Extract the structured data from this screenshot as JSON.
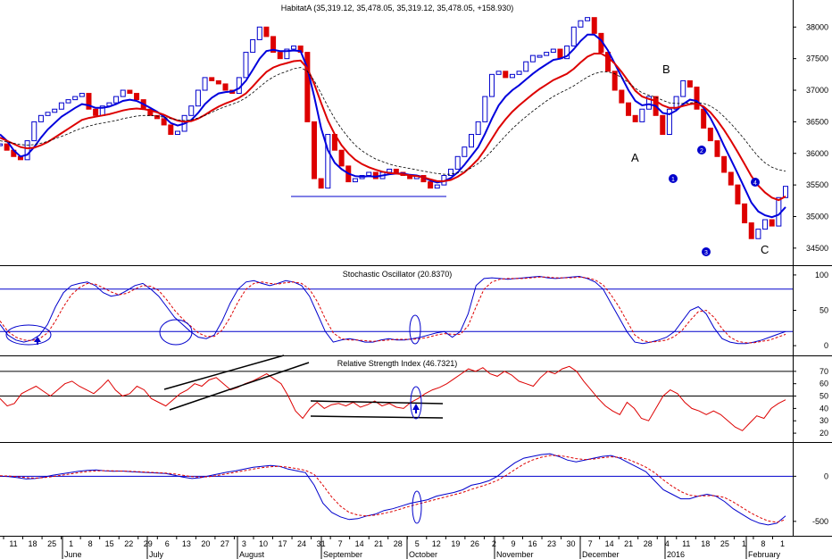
{
  "chart_data": [
    {
      "type": "candlestick",
      "title": "HabitatA (35,319.12, 35,478.05, 35,319.12, 35,478.05, +158.930)",
      "y_ticks": [
        "38000",
        "37500",
        "37000",
        "36500",
        "36000",
        "35500",
        "35000",
        "34500"
      ],
      "ylim": [
        34300,
        38400
      ],
      "annotations": [
        "A",
        "B",
        "C",
        "1",
        "2",
        "3",
        "4"
      ],
      "series": [
        {
          "name": "Price",
          "color": "#0000cc",
          "values": [
            36150,
            36050,
            35950,
            35900,
            36200,
            36500,
            36600,
            36650,
            36700,
            36800,
            36850,
            36900,
            36950,
            36700,
            36600,
            36750,
            36800,
            36900,
            37000,
            36950,
            36850,
            36700,
            36600,
            36550,
            36450,
            36300,
            36350,
            36600,
            36750,
            37000,
            37200,
            37150,
            37100,
            37000,
            36950,
            37200,
            37600,
            37800,
            38000,
            37850,
            37600,
            37500,
            37650,
            37700,
            37600,
            36500,
            35600,
            35450,
            36300,
            36050,
            35800,
            35550,
            35600,
            35650,
            35700,
            35600,
            35700,
            35750,
            35700,
            35650,
            35600,
            35650,
            35550,
            35450,
            35500,
            35650,
            35750,
            35950,
            36100,
            36300,
            36500,
            36900,
            37250,
            37300,
            37200,
            37250,
            37300,
            37450,
            37550,
            37550,
            37600,
            37650,
            37500,
            37700,
            38000,
            38100,
            38150,
            37900,
            37600,
            37300,
            37000,
            36800,
            36600,
            36500,
            36700,
            36900,
            36600,
            36300,
            36700,
            36900,
            37150,
            37050,
            36700,
            36400,
            36200,
            35950,
            35700,
            35500,
            35200,
            34900,
            34650,
            34800,
            34950,
            34850,
            35300,
            35478
          ]
        },
        {
          "name": "MA fast",
          "color": "#0000dd",
          "values": [
            36300,
            36200,
            36050,
            35950,
            35980,
            36100,
            36250,
            36380,
            36480,
            36580,
            36650,
            36720,
            36780,
            36760,
            36720,
            36720,
            36740,
            36780,
            36830,
            36850,
            36830,
            36780,
            36720,
            36660,
            36580,
            36480,
            36440,
            36470,
            36530,
            36640,
            36780,
            36880,
            36950,
            36970,
            36980,
            37030,
            37150,
            37320,
            37500,
            37620,
            37640,
            37620,
            37620,
            37630,
            37620,
            37350,
            36900,
            36400,
            36050,
            35850,
            35750,
            35680,
            35640,
            35630,
            35640,
            35630,
            35650,
            35670,
            35680,
            35680,
            35660,
            35650,
            35620,
            35570,
            35540,
            35560,
            35610,
            35700,
            35820,
            35960,
            36100,
            36310,
            36550,
            36760,
            36900,
            37000,
            37080,
            37170,
            37260,
            37340,
            37410,
            37480,
            37500,
            37540,
            37650,
            37780,
            37880,
            37880,
            37790,
            37630,
            37420,
            37210,
            37000,
            36830,
            36760,
            36780,
            36750,
            36640,
            36620,
            36680,
            36780,
            36850,
            36830,
            36720,
            36560,
            36350,
            36120,
            35900,
            35680,
            35450,
            35220,
            35080,
            35020,
            34990,
            35030,
            35150
          ]
        },
        {
          "name": "MA medium",
          "color": "#dd0000",
          "values": [
            36250,
            36200,
            36150,
            36100,
            36080,
            36090,
            36130,
            36180,
            36250,
            36320,
            36390,
            36460,
            36530,
            36560,
            36580,
            36600,
            36620,
            36650,
            36680,
            36700,
            36710,
            36700,
            36680,
            36650,
            36610,
            36560,
            36520,
            36500,
            36510,
            36550,
            36610,
            36680,
            36740,
            36790,
            36830,
            36880,
            36950,
            37060,
            37180,
            37290,
            37360,
            37400,
            37430,
            37460,
            37470,
            37350,
            37100,
            36800,
            36520,
            36300,
            36130,
            36000,
            35900,
            35830,
            35780,
            35740,
            35710,
            35690,
            35680,
            35670,
            35650,
            35640,
            35620,
            35590,
            35560,
            35560,
            35580,
            35630,
            35700,
            35800,
            35910,
            36060,
            36230,
            36400,
            36540,
            36660,
            36760,
            36850,
            36940,
            37020,
            37090,
            37160,
            37210,
            37260,
            37340,
            37440,
            37530,
            37580,
            37580,
            37520,
            37420,
            37290,
            37140,
            36990,
            36900,
            36860,
            36830,
            36760,
            36720,
            36720,
            36750,
            36780,
            36790,
            36740,
            36650,
            36520,
            36370,
            36200,
            36020,
            35830,
            35640,
            35490,
            35380,
            35300,
            35260,
            35320
          ]
        },
        {
          "name": "MA slow",
          "color": "#000000",
          "values": [
            36200,
            36180,
            36160,
            36140,
            36130,
            36140,
            36160,
            36190,
            36230,
            36270,
            36310,
            36360,
            36400,
            36430,
            36460,
            36480,
            36500,
            36520,
            36550,
            36570,
            36590,
            36600,
            36600,
            36590,
            36570,
            36550,
            36530,
            36520,
            36530,
            36560,
            36600,
            36650,
            36700,
            36740,
            36780,
            36820,
            36880,
            36960,
            37050,
            37140,
            37210,
            37260,
            37300,
            37340,
            37360,
            37300,
            37150,
            36950,
            36740,
            36550,
            36390,
            36250,
            36130,
            36040,
            35970,
            35910,
            35870,
            35830,
            35800,
            35780,
            35760,
            35740,
            35720,
            35700,
            35680,
            35670,
            35670,
            35690,
            35720,
            35770,
            35840,
            35930,
            36040,
            36160,
            36280,
            36390,
            36490,
            36580,
            36670,
            36750,
            36830,
            36900,
            36960,
            37010,
            37070,
            37140,
            37210,
            37260,
            37290,
            37290,
            37260,
            37200,
            37120,
            37030,
            36960,
            36920,
            36890,
            36840,
            36800,
            36790,
            36790,
            36800,
            36810,
            36790,
            36750,
            36680,
            36580,
            36470,
            36350,
            36220,
            36080,
            35950,
            35850,
            35780,
            35740,
            35720
          ]
        }
      ]
    },
    {
      "type": "line",
      "title": "Stochastic Oscillator (20.8370)",
      "y_ticks": [
        "100",
        "50",
        "0"
      ],
      "ylim": [
        -10,
        110
      ],
      "reference_lines": [
        80,
        20
      ],
      "series": [
        {
          "name": "%K",
          "color": "#0000cc",
          "values": [
            30,
            15,
            8,
            5,
            8,
            15,
            30,
            55,
            75,
            85,
            88,
            90,
            85,
            75,
            70,
            72,
            78,
            85,
            88,
            80,
            70,
            55,
            40,
            30,
            20,
            12,
            10,
            15,
            35,
            60,
            80,
            90,
            92,
            88,
            85,
            88,
            92,
            90,
            85,
            70,
            45,
            20,
            5,
            8,
            10,
            8,
            5,
            5,
            8,
            10,
            8,
            8,
            10,
            12,
            15,
            18,
            20,
            12,
            20,
            45,
            85,
            95,
            96,
            95,
            94,
            95,
            96,
            97,
            98,
            96,
            95,
            96,
            97,
            98,
            95,
            90,
            80,
            60,
            40,
            20,
            5,
            3,
            5,
            8,
            12,
            20,
            35,
            50,
            55,
            45,
            25,
            10,
            5,
            3,
            3,
            5,
            8,
            12,
            16,
            20
          ]
        },
        {
          "name": "%D",
          "color": "#dd0000",
          "values": [
            35,
            20,
            12,
            8,
            7,
            10,
            18,
            35,
            55,
            72,
            82,
            88,
            87,
            82,
            76,
            72,
            74,
            80,
            85,
            84,
            78,
            65,
            50,
            38,
            28,
            18,
            13,
            13,
            22,
            40,
            62,
            80,
            88,
            90,
            88,
            87,
            89,
            90,
            88,
            80,
            62,
            38,
            18,
            10,
            8,
            8,
            7,
            6,
            7,
            8,
            9,
            9,
            9,
            10,
            12,
            15,
            17,
            16,
            16,
            28,
            55,
            80,
            90,
            94,
            95,
            95,
            95,
            96,
            97,
            97,
            96,
            96,
            96,
            97,
            96,
            93,
            86,
            72,
            55,
            35,
            15,
            7,
            5,
            6,
            8,
            13,
            22,
            36,
            48,
            50,
            40,
            24,
            12,
            6,
            4,
            4,
            6,
            8,
            12,
            16
          ]
        }
      ]
    },
    {
      "type": "line",
      "title": "Relative Strength Index (46.7321)",
      "y_ticks": [
        "70",
        "60",
        "50",
        "40",
        "30",
        "20"
      ],
      "ylim": [
        15,
        80
      ],
      "reference_lines": [
        70,
        50
      ],
      "series": [
        {
          "name": "RSI",
          "color": "#dd0000",
          "values": [
            48,
            42,
            44,
            52,
            55,
            58,
            54,
            50,
            55,
            60,
            62,
            58,
            55,
            52,
            57,
            63,
            55,
            50,
            52,
            58,
            55,
            48,
            45,
            42,
            47,
            52,
            55,
            60,
            58,
            63,
            65,
            60,
            55,
            57,
            60,
            62,
            65,
            68,
            64,
            60,
            50,
            38,
            32,
            40,
            45,
            40,
            43,
            44,
            42,
            45,
            41,
            43,
            46,
            42,
            44,
            41,
            40,
            45,
            48,
            52,
            55,
            57,
            60,
            64,
            68,
            72,
            70,
            73,
            68,
            66,
            70,
            67,
            62,
            60,
            58,
            65,
            70,
            68,
            72,
            74,
            70,
            62,
            55,
            48,
            42,
            38,
            35,
            45,
            40,
            32,
            30,
            40,
            50,
            55,
            52,
            45,
            40,
            38,
            35,
            38,
            35,
            30,
            25,
            22,
            28,
            34,
            32,
            40,
            44,
            47
          ]
        }
      ]
    },
    {
      "type": "line",
      "title": "",
      "y_ticks": [
        "0",
        "-500"
      ],
      "ylim": [
        -640,
        330
      ],
      "reference_lines": [
        0
      ],
      "series": [
        {
          "name": "MACD",
          "color": "#0000cc",
          "values": [
            0,
            -5,
            -15,
            -30,
            -25,
            -10,
            10,
            25,
            40,
            55,
            65,
            70,
            60,
            55,
            58,
            50,
            45,
            40,
            35,
            30,
            10,
            -10,
            -25,
            -15,
            5,
            25,
            45,
            60,
            80,
            100,
            110,
            120,
            110,
            80,
            60,
            40,
            -100,
            -300,
            -400,
            -450,
            -480,
            -470,
            -440,
            -420,
            -380,
            -360,
            -330,
            -300,
            -280,
            -260,
            -220,
            -200,
            -180,
            -150,
            -100,
            -80,
            -50,
            0,
            80,
            150,
            200,
            220,
            240,
            250,
            220,
            180,
            160,
            180,
            200,
            220,
            230,
            200,
            150,
            100,
            50,
            -50,
            -150,
            -200,
            -250,
            -250,
            -220,
            -200,
            -220,
            -280,
            -360,
            -420,
            -480,
            -520,
            -540,
            -520,
            -440
          ]
        },
        {
          "name": "Signal",
          "color": "#dd0000",
          "values": [
            5,
            2,
            -5,
            -15,
            -20,
            -15,
            -5,
            10,
            25,
            40,
            52,
            60,
            62,
            60,
            58,
            55,
            50,
            45,
            40,
            35,
            25,
            10,
            -5,
            -10,
            -5,
            10,
            28,
            45,
            62,
            80,
            95,
            105,
            110,
            100,
            85,
            65,
            20,
            -100,
            -230,
            -330,
            -400,
            -430,
            -440,
            -430,
            -410,
            -390,
            -360,
            -330,
            -305,
            -280,
            -255,
            -230,
            -205,
            -180,
            -145,
            -115,
            -85,
            -45,
            10,
            75,
            135,
            180,
            210,
            230,
            230,
            215,
            195,
            185,
            190,
            205,
            215,
            210,
            185,
            145,
            100,
            40,
            -40,
            -110,
            -170,
            -210,
            -220,
            -215,
            -215,
            -235,
            -285,
            -345,
            -405,
            -455,
            -495,
            -510,
            -480
          ]
        }
      ]
    }
  ],
  "x_axis": {
    "day_ticks": [
      "11",
      "18",
      "25",
      "1",
      "8",
      "15",
      "22",
      "29",
      "6",
      "13",
      "20",
      "27",
      "3",
      "10",
      "17",
      "24",
      "31",
      "7",
      "14",
      "21",
      "28",
      "5",
      "12",
      "19",
      "26",
      "2",
      "9",
      "16",
      "23",
      "30",
      "7",
      "14",
      "21",
      "28",
      "4",
      "11",
      "18",
      "25",
      "1",
      "8",
      "1"
    ],
    "month_labels": [
      "June",
      "July",
      "August",
      "September",
      "October",
      "November",
      "December",
      "2016",
      "February"
    ]
  }
}
